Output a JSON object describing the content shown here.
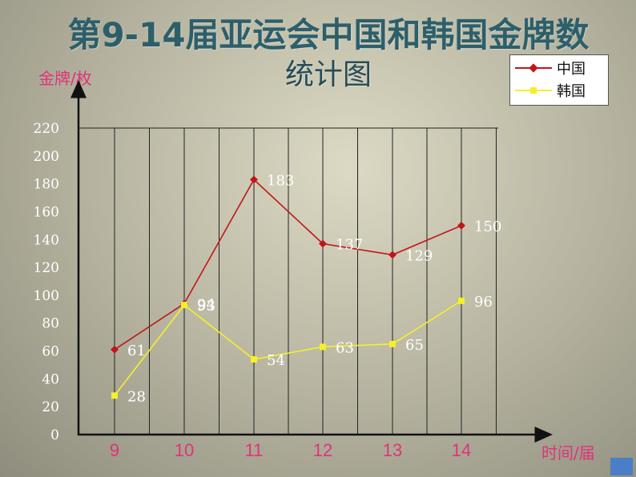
{
  "title_line1": "第9-14届亚运会中国和韩国金牌数",
  "title_line2": "统计图",
  "chart_data": {
    "type": "line",
    "title": "第9-14届亚运会中国和韩国金牌数统计图",
    "ylabel": "金牌/枚",
    "xlabel": "时间/届",
    "categories": [
      "9",
      "10",
      "11",
      "12",
      "13",
      "14"
    ],
    "ylim": [
      0,
      220
    ],
    "yticks": [
      "0",
      "20",
      "40",
      "60",
      "80",
      "100",
      "120",
      "140",
      "160",
      "180",
      "200",
      "220"
    ],
    "series": [
      {
        "name": "中国",
        "values": [
          61,
          94,
          183,
          137,
          129,
          150
        ],
        "labels": [
          "61",
          "94",
          "183",
          "137",
          "129",
          "150"
        ],
        "color": "#c0161a",
        "marker": "diamond"
      },
      {
        "name": "韩国",
        "values": [
          28,
          93,
          54,
          63,
          65,
          96
        ],
        "labels": [
          "28",
          "93",
          "54",
          "63",
          "65",
          "96"
        ],
        "color": "#f5f02a",
        "marker": "square"
      }
    ],
    "grid": "vertical",
    "legend": "top-right"
  },
  "colors": {
    "title": "#2d5f6b",
    "axis_title": "#e0337a",
    "x_tick": "#e0337a",
    "y_tick": "#ffffff",
    "corner_square": "#4a7fc8"
  }
}
